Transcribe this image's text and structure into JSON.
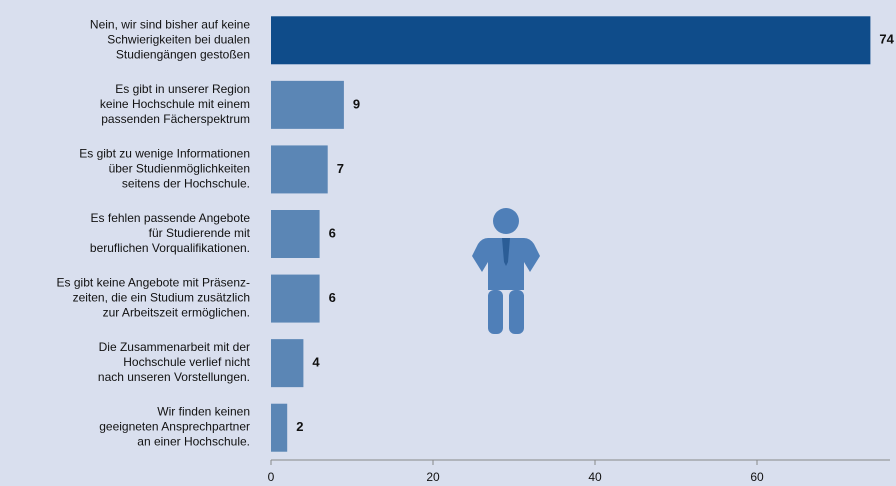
{
  "chart_data": {
    "type": "bar",
    "orientation": "horizontal",
    "categories": [
      [
        "Nein, wir sind bisher auf keine",
        "Schwierigkeiten bei dualen",
        "Studiengängen gestoßen"
      ],
      [
        "Es gibt in unserer Region",
        "keine Hochschule mit einem",
        "passenden Fächerspektrum"
      ],
      [
        "Es gibt zu wenige Informationen",
        "über Studienmöglichkeiten",
        "seitens der Hochschule."
      ],
      [
        "Es fehlen passende Angebote",
        "für Studierende mit",
        "beruflichen Vorqualifikationen."
      ],
      [
        "Es gibt keine Angebote mit Präsenz-",
        "zeiten, die ein Studium zusätzlich",
        "zur Arbeitszeit ermöglichen."
      ],
      [
        "Die Zusammenarbeit mit der",
        "Hochschule verlief nicht",
        "nach unseren Vorstellungen."
      ],
      [
        "Wir finden keinen",
        "geeigneten Ansprechpartner",
        "an einer Hochschule."
      ]
    ],
    "values": [
      74,
      9,
      7,
      6,
      6,
      4,
      2
    ],
    "colors": [
      "#0f4c8a",
      "#5b86b5",
      "#5b86b5",
      "#5b86b5",
      "#5b86b5",
      "#5b86b5",
      "#5b86b5"
    ],
    "xlim": [
      0,
      77
    ],
    "xticks": [
      0,
      20,
      40,
      60
    ],
    "grid": false
  }
}
